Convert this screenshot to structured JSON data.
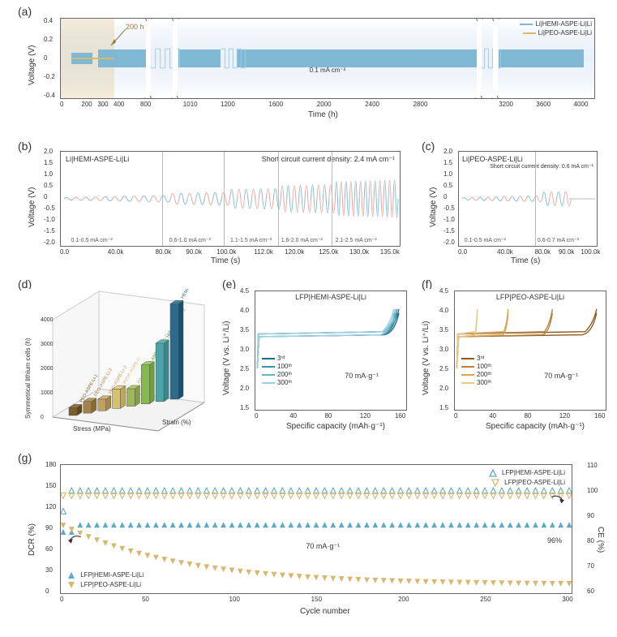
{
  "labels": {
    "a": "(a)",
    "b": "(b)",
    "c": "(c)",
    "d": "(d)",
    "e": "(e)",
    "f": "(f)",
    "g": "(g)"
  },
  "panel_a": {
    "ylabel": "Voltage (V)",
    "xlabel": "Time (h)",
    "yticks": [
      "-0.4",
      "-0.2",
      "0",
      "0.2",
      "0.4"
    ],
    "xticks": [
      "0",
      "200",
      "300",
      "400",
      "800",
      "1010",
      "1200",
      "1600",
      "2000",
      "2400",
      "2800",
      "3200",
      "3600",
      "4000"
    ],
    "legend": {
      "hemi": "Li|HEMI-ASPE-Li|Li",
      "peo": "Li|PEO-ASPE-Li|Li"
    },
    "color_hemi": "#7eb8d3",
    "color_peo": "#d7b86e",
    "annotation_200h": "200 h",
    "center_text": "0.1 mA cm⁻²"
  },
  "panel_b": {
    "title": "Li|HEMI-ASPE-Li|Li",
    "ylabel": "Voltage (V)",
    "xlabel": "Time (s)",
    "short_circuit": "Short circuit current density: 2.4 mA cm⁻¹",
    "yticks": [
      "-2.0",
      "-1.5",
      "-1.0",
      "-0.5",
      "0",
      "0.5",
      "1.0",
      "1.5",
      "2.0"
    ],
    "xticks": [
      "0.0",
      "40.0k",
      "80.0k",
      "90.0k",
      "100.0k",
      "112.0k",
      "120.0k",
      "125.0k",
      "130.0k",
      "135.0k"
    ],
    "ranges": [
      "0.1-0.5 mA cm⁻²",
      "0.6-1.0 mA cm⁻²",
      "1.1-1.5 mA cm⁻²",
      "1.6-2.0 mA cm⁻²",
      "2.1-2.5 mA cm⁻²"
    ],
    "colors": [
      "#84bbd6",
      "#e6a8a0"
    ]
  },
  "panel_c": {
    "title": "Li|PEO-ASPE-Li|Li",
    "ylabel": "Voltage (V)",
    "xlabel": "Time (s)",
    "short_circuit": "Short circuit current density: 0.6 mA cm⁻¹",
    "yticks": [
      "-2.0",
      "-1.5",
      "-1.0",
      "-0.5",
      "0",
      "0.5",
      "1.0",
      "1.5",
      "2.0"
    ],
    "xticks": [
      "0.0",
      "40.0k",
      "80.0k",
      "90.0k",
      "100.0k"
    ],
    "ranges": [
      "0.1-0.5 mA cm⁻²",
      "0.6-0.7 mA cm⁻²"
    ],
    "colors": [
      "#84bbd6",
      "#e6a8a0"
    ]
  },
  "panel_d": {
    "ylabel_z": "Symmetrical lithium cells (h)",
    "xlabel_stress": "Stress (MPa)",
    "xlabel_strain": "Strain (%)",
    "zticks": [
      "0",
      "1000",
      "2000",
      "3000",
      "4000"
    ],
    "stress_ticks": [
      "-10",
      "-5",
      "0",
      "5",
      "10"
    ],
    "strain_ticks": [
      "0",
      "200",
      "400",
      "600",
      "800",
      "1000",
      "1200",
      "1400"
    ],
    "bars": [
      {
        "h": 0.08,
        "color": "#7a5e2e"
      },
      {
        "h": 0.12,
        "color": "#a48446"
      },
      {
        "h": 0.12,
        "color": "#c0a25c"
      },
      {
        "h": 0.2,
        "color": "#d7c170"
      },
      {
        "h": 0.18,
        "color": "#9fb85a"
      },
      {
        "h": 0.4,
        "color": "#86b94f"
      },
      {
        "h": 0.6,
        "color": "#4aa3a6"
      },
      {
        "h": 0.98,
        "color": "#2d6a8a"
      }
    ],
    "bar_labels": [
      "PEO-ASPE-Li-1",
      "PEO-ASPE-Li-2",
      "PEO-ASPE-Li-3",
      "PVDF-ASPE-Li",
      "P(VDF-HFP)-ASPE-Li",
      "HEMI-ASPE-Li-1",
      "HEMI-ASPE-Li-2",
      "HEMI-ASPE-Li"
    ]
  },
  "panel_e": {
    "title": "LFP|HEMI-ASPE-Li|Li",
    "ylabel": "Voltage (V vs. Li⁺/Li)",
    "xlabel": "Specific capacity (mAh·g⁻¹)",
    "rate": "70 mA·g⁻¹",
    "yticks": [
      "1.5",
      "2.0",
      "2.5",
      "3.0",
      "3.5",
      "4.0",
      "4.5"
    ],
    "xticks": [
      "0",
      "40",
      "80",
      "120",
      "160"
    ],
    "cycles": [
      "3ʳᵈ",
      "100ᵗʰ",
      "200ᵗʰ",
      "300ᵗʰ"
    ],
    "colors": [
      "#1f6d8c",
      "#3d8ea7",
      "#69b0c4",
      "#9dd1de"
    ]
  },
  "panel_f": {
    "title": "LFP|PEO-ASPE-Li|Li",
    "ylabel": "Voltage (V vs. Li⁺/Li)",
    "xlabel": "Specific capacity (mAh·g⁻¹)",
    "rate": "70 mA·g⁻¹",
    "yticks": [
      "1.5",
      "2.0",
      "2.5",
      "3.0",
      "3.5",
      "4.0",
      "4.5"
    ],
    "xticks": [
      "0",
      "40",
      "80",
      "120",
      "160"
    ],
    "cycles": [
      "3ʳᵈ",
      "100ᵗʰ",
      "200ᵗʰ",
      "300ᵗʰ"
    ],
    "colors": [
      "#8a5a1e",
      "#b7823b",
      "#d8a559",
      "#e8c787"
    ]
  },
  "panel_g": {
    "ylabel_left": "DCR (%)",
    "ylabel_right": "CE (%)",
    "xlabel": "Cycle number",
    "yticks_left": [
      "0",
      "30",
      "60",
      "90",
      "120",
      "150",
      "180"
    ],
    "yticks_right": [
      "60",
      "70",
      "80",
      "90",
      "100",
      "110"
    ],
    "xticks": [
      "0",
      "50",
      "100",
      "150",
      "200",
      "250",
      "300"
    ],
    "rate": "70 mA·g⁻¹",
    "final_value": "96%",
    "legend_top": {
      "hemi": "LFP|HEMI-ASPE-Li|Li",
      "peo": "LFP|PEO-ASPE-Li|Li"
    },
    "legend_bottom": {
      "hemi": "LFP|HEMI-ASPE-Li|Li",
      "peo": "LFP|PEO-ASPE-Li|Li"
    },
    "color_hemi": "#5fa9c9",
    "color_peo": "#d7b86e",
    "hemi_dcr": 96,
    "hemi_ce": 100,
    "peo_dcr_start": 95,
    "peo_dcr_end": 12,
    "peo_ce": 98
  },
  "styling": {
    "axis_fontsize": 10,
    "tick_fontsize": 8,
    "title_fontsize": 9,
    "legend_fontsize": 8,
    "grid_color": "#e0e0e0",
    "frame_color": "#666666",
    "background_color": "#ffffff"
  }
}
